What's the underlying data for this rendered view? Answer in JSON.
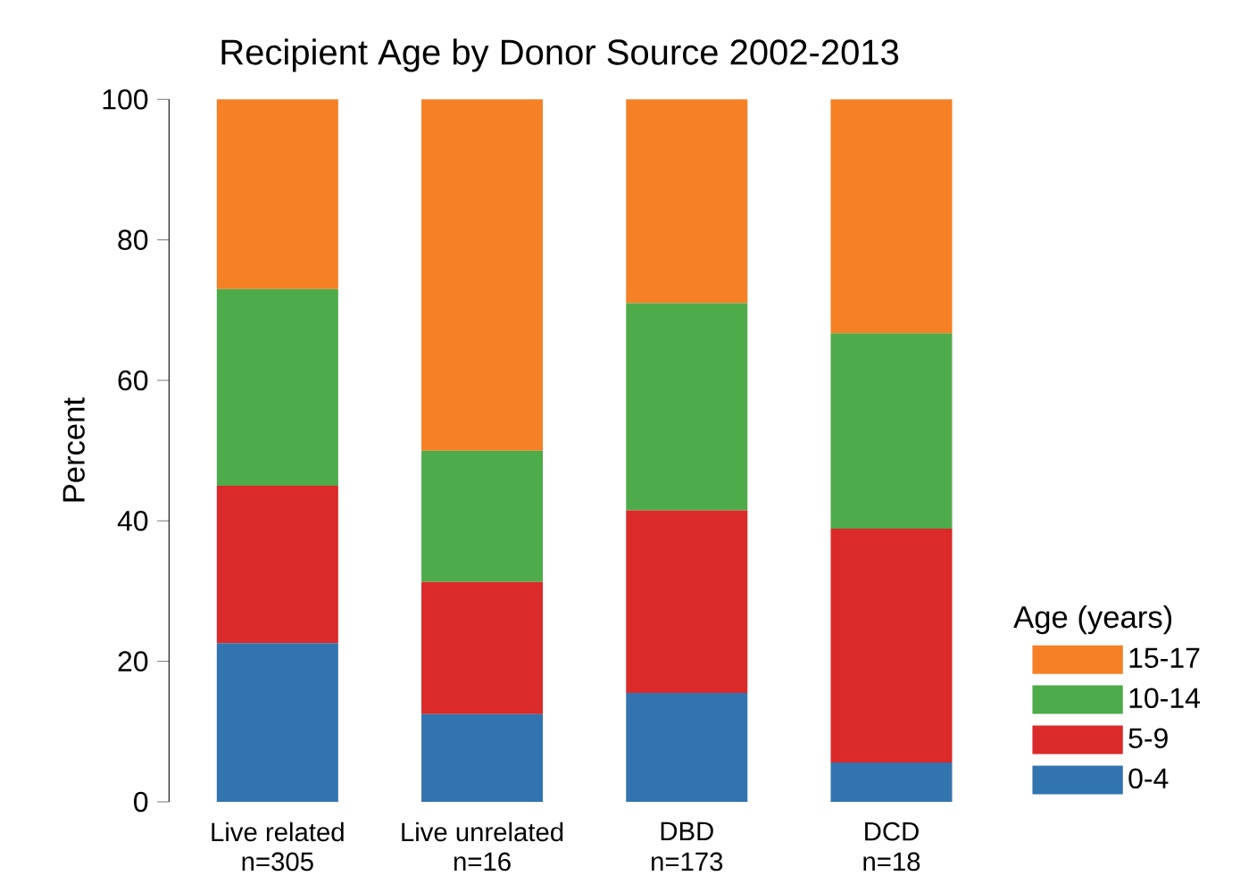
{
  "chart_data": {
    "type": "bar",
    "stacked": true,
    "title": "Recipient Age by Donor Source 2002-2013",
    "ylabel": "Percent",
    "legend_title": "Age (years)",
    "legend": "right",
    "categories": [
      "Live related",
      "Live unrelated",
      "DBD",
      "DCD"
    ],
    "annotations": [
      "n=305",
      "n=16",
      "n=173",
      "n=18"
    ],
    "ylim": [
      0,
      100
    ],
    "yticks": [
      0,
      20,
      40,
      60,
      80,
      100
    ],
    "grid": false,
    "series": [
      {
        "name": "0-4",
        "color": "#3274b0",
        "values": [
          22.6,
          12.5,
          15.5,
          5.6
        ]
      },
      {
        "name": "5-9",
        "color": "#da2a2a",
        "values": [
          22.4,
          18.8,
          26.0,
          33.3
        ]
      },
      {
        "name": "10-14",
        "color": "#4eab4a",
        "values": [
          28.0,
          18.7,
          29.5,
          27.8
        ]
      },
      {
        "name": "15-17",
        "color": "#f58025",
        "values": [
          27.0,
          50.0,
          29.0,
          33.3
        ]
      }
    ]
  }
}
